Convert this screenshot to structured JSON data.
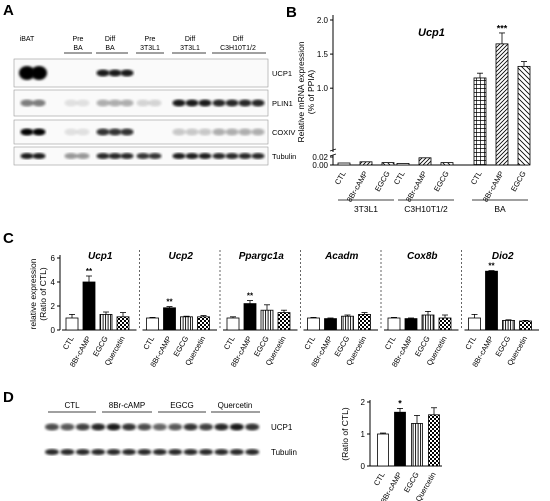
{
  "panel_labels": [
    "A",
    "B",
    "C",
    "D"
  ],
  "panelA": {
    "lanes": [
      {
        "top": "iBAT",
        "bottom": ""
      },
      {
        "top": "Pre",
        "bottom": "BA"
      },
      {
        "top": "Diff",
        "bottom": "BA"
      },
      {
        "top": "Pre",
        "bottom": "3T3L1"
      },
      {
        "top": "Diff",
        "bottom": "3T3L1"
      },
      {
        "top": "Diff",
        "bottom": "C3H10T1/2"
      }
    ],
    "blots": [
      "UCP1",
      "PLIN1",
      "COXIV",
      "Tubulin"
    ]
  },
  "panelB": {
    "title": "Ucp1",
    "ylabel": "Relative mRNA expression\n(% of PPIA)",
    "yticks_upper": [
      "2.0",
      "1.5",
      "1.0"
    ],
    "yticks_lower": [
      "0.02",
      "0.00"
    ],
    "groups": [
      "3T3L1",
      "C3H10T1/2",
      "BA"
    ],
    "treatments": [
      "CTL",
      "8Br-cAMP",
      "EGCG"
    ],
    "significance": "***"
  },
  "panelC": {
    "ylabel": "relative expression\n(Ratio of CTL)",
    "yticks": [
      "6",
      "4",
      "2",
      "0"
    ],
    "genes": [
      "Ucp1",
      "Ucp2",
      "Ppargc1a",
      "Acadm",
      "Cox8b",
      "Dio2"
    ],
    "treatments": [
      "CTL",
      "8Br-cAMP",
      "EGCG",
      "Quercetin"
    ],
    "significance": "**"
  },
  "panelD": {
    "blot_groups": [
      "CTL",
      "8Br-cAMP",
      "EGCG",
      "Quercetin"
    ],
    "blots": [
      "UCP1",
      "Tubulin"
    ],
    "ylabel": "(Ratio of CTL)",
    "yticks": [
      "2",
      "1",
      "0"
    ],
    "treatments": [
      "CTL",
      "8Br-cAMP",
      "EGCG",
      "Quercetin"
    ],
    "significance": "*"
  },
  "chart_data": [
    {
      "type": "bar",
      "title": "Ucp1",
      "ylabel": "Relative mRNA expression (% of PPIA)",
      "broken_axis": true,
      "ylim_lower": [
        0,
        0.02
      ],
      "ylim_upper": [
        0.02,
        2.0
      ],
      "categories": [
        "CTL",
        "8Br-cAMP",
        "EGCG"
      ],
      "series": [
        {
          "name": "3T3L1",
          "values": [
            0.005,
            0.008,
            0.006
          ],
          "errors": [
            0.002,
            0.002,
            0.002
          ]
        },
        {
          "name": "C3H10T1/2",
          "values": [
            0.004,
            0.018,
            0.006
          ],
          "errors": [
            0.001,
            0.002,
            0.001
          ]
        },
        {
          "name": "BA",
          "values": [
            1.15,
            1.65,
            1.32
          ],
          "errors": [
            0.07,
            0.16,
            0.07
          ]
        }
      ]
    },
    {
      "type": "bar",
      "ylabel": "relative expression (Ratio of CTL)",
      "ylim": [
        0,
        6
      ],
      "categories": [
        "CTL",
        "8Br-cAMP",
        "EGCG",
        "Quercetin"
      ],
      "series": [
        {
          "name": "Ucp1",
          "values": [
            1.0,
            4.0,
            1.3,
            1.1
          ],
          "errors": [
            0.3,
            0.5,
            0.2,
            0.35
          ],
          "sig": [
            null,
            "**",
            null,
            null
          ]
        },
        {
          "name": "Ucp2",
          "values": [
            1.0,
            1.85,
            1.1,
            1.1
          ],
          "errors": [
            0.05,
            0.1,
            0.05,
            0.1
          ],
          "sig": [
            null,
            "**",
            null,
            null
          ]
        },
        {
          "name": "Ppargc1a",
          "values": [
            1.0,
            2.2,
            1.65,
            1.45
          ],
          "errors": [
            0.1,
            0.25,
            0.45,
            0.2
          ],
          "sig": [
            null,
            "**",
            null,
            null
          ]
        },
        {
          "name": "Acadm",
          "values": [
            1.0,
            0.95,
            1.15,
            1.3
          ],
          "errors": [
            0.05,
            0.05,
            0.1,
            0.15
          ],
          "sig": [
            null,
            null,
            null,
            null
          ]
        },
        {
          "name": "Cox8b",
          "values": [
            1.0,
            0.95,
            1.25,
            1.0
          ],
          "errors": [
            0.05,
            0.05,
            0.3,
            0.25
          ],
          "sig": [
            null,
            null,
            null,
            null
          ]
        },
        {
          "name": "Dio2",
          "values": [
            1.0,
            4.9,
            0.8,
            0.75
          ],
          "errors": [
            0.3,
            0.05,
            0.05,
            0.05
          ],
          "sig": [
            null,
            "**",
            null,
            null
          ]
        }
      ]
    },
    {
      "type": "bar",
      "ylabel": "(Ratio of CTL)",
      "ylim": [
        0,
        2
      ],
      "categories": [
        "CTL",
        "8Br-cAMP",
        "EGCG",
        "Quercetin"
      ],
      "values": [
        1.0,
        1.68,
        1.33,
        1.6
      ],
      "errors": [
        0.03,
        0.12,
        0.25,
        0.22
      ],
      "sig": [
        null,
        "*",
        null,
        null
      ]
    }
  ]
}
